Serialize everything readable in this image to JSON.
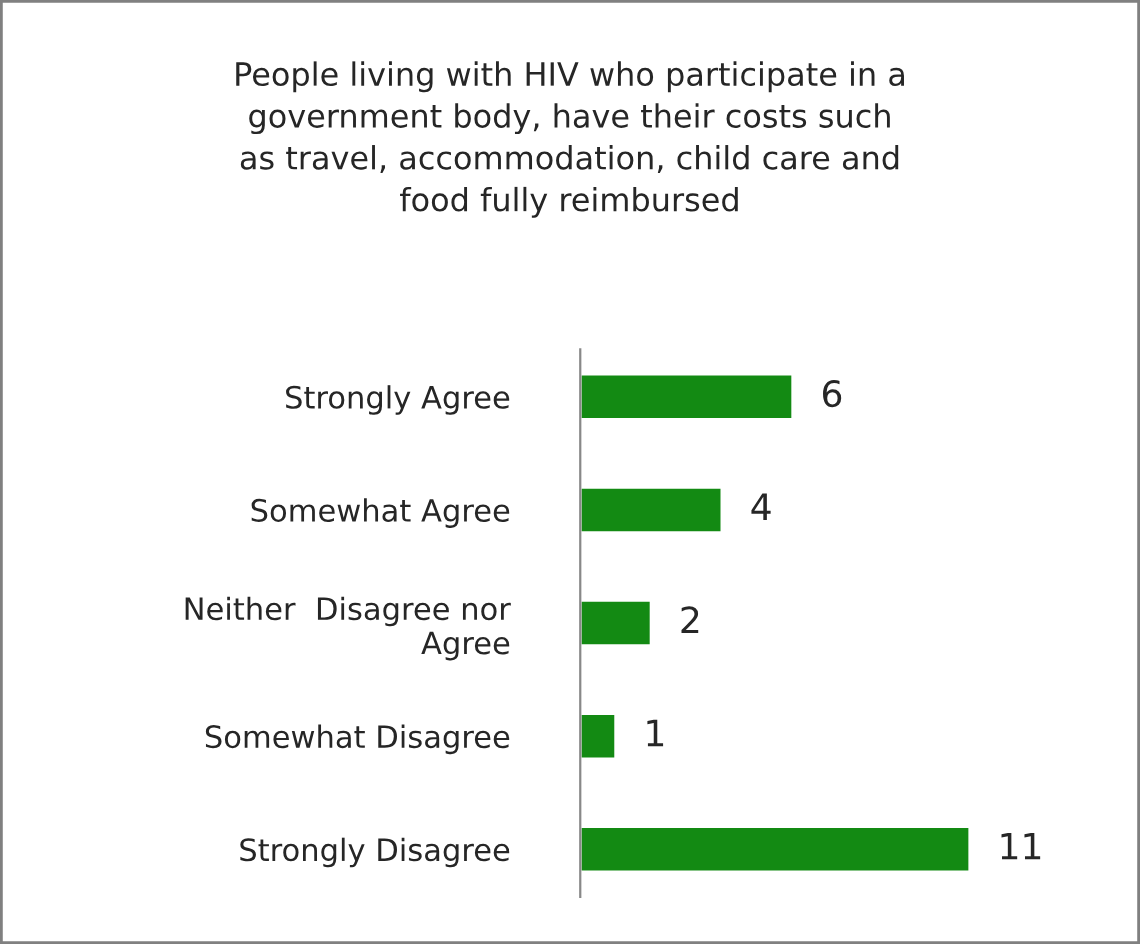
{
  "chart_data": {
    "type": "bar",
    "orientation": "horizontal",
    "title": "People living with HIV who participate in a\ngovernment body, have their costs such\nas travel, accommodation, child care and\nfood fully reimbursed",
    "categories": [
      "Strongly Agree",
      "Somewhat Agree",
      "Neither  Disagree nor\nAgree",
      "Somewhat Disagree",
      "Strongly Disagree"
    ],
    "values": [
      6,
      4,
      2,
      1,
      11
    ],
    "color": "#138a13",
    "data_labels": true,
    "grid": false,
    "legend": false,
    "tick_labels": "y"
  }
}
